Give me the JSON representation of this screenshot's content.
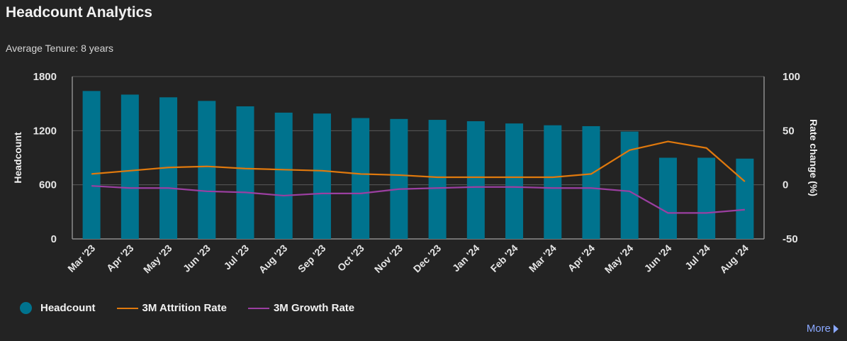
{
  "header": {
    "title": "Headcount Analytics",
    "subtitle": "Average Tenure: 8 years"
  },
  "legend": {
    "items": [
      {
        "label": "Headcount",
        "color": "#00738e",
        "shape": "circle"
      },
      {
        "label": "3M Attrition Rate",
        "color": "#e0790d",
        "shape": "line"
      },
      {
        "label": "3M Growth Rate",
        "color": "#9b3fa1",
        "shape": "line"
      }
    ]
  },
  "footer": {
    "more_label": "More"
  },
  "chart_data": {
    "type": "bar",
    "categories": [
      "Mar '23",
      "Apr '23",
      "May '23",
      "Jun '23",
      "Jul '23",
      "Aug '23",
      "Sep '23",
      "Oct '23",
      "Nov '23",
      "Dec '23",
      "Jan '24",
      "Feb '24",
      "Mar '24",
      "Apr '24",
      "May '24",
      "Jun '24",
      "Jul '24",
      "Aug '24"
    ],
    "ylabel": "Headcount",
    "ylim": [
      0,
      1800
    ],
    "yticks": [
      0,
      600,
      1200,
      1800
    ],
    "y2label": "Rate change (%)",
    "y2lim": [
      -50,
      100
    ],
    "y2ticks": [
      -50,
      0,
      50,
      100
    ],
    "grid": true,
    "legend_position": "bottom-left",
    "series": [
      {
        "name": "Headcount",
        "type": "bar",
        "axis": "left",
        "color": "#00738e",
        "values": [
          1640,
          1600,
          1570,
          1530,
          1470,
          1400,
          1390,
          1340,
          1330,
          1320,
          1305,
          1280,
          1260,
          1250,
          1190,
          900,
          900,
          890
        ]
      },
      {
        "name": "3M Attrition Rate",
        "type": "line",
        "axis": "right",
        "color": "#e0790d",
        "values": [
          10,
          13,
          16,
          17,
          15,
          14,
          13,
          10,
          9,
          7,
          7,
          7,
          7,
          10,
          32,
          40,
          34,
          3
        ]
      },
      {
        "name": "3M Growth Rate",
        "type": "line",
        "axis": "right",
        "color": "#9b3fa1",
        "values": [
          -1,
          -3,
          -3,
          -6,
          -7,
          -10,
          -8,
          -8,
          -4,
          -3,
          -2,
          -2,
          -3,
          -3,
          -6,
          -26,
          -26,
          -23
        ]
      }
    ]
  }
}
